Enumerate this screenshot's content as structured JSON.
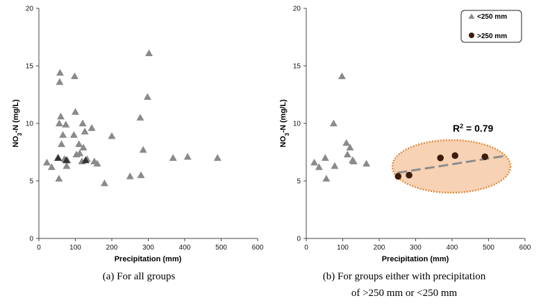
{
  "chart_data": [
    {
      "type": "scatter",
      "xlabel": "Precipitation (mm)",
      "ylabel_main": "NO",
      "ylabel_sub": "3",
      "ylabel_rest": "-N (mg/L)",
      "xlim": [
        0,
        600
      ],
      "ylim": [
        0,
        20
      ],
      "xticks": [
        0,
        100,
        200,
        300,
        400,
        500,
        600
      ],
      "yticks": [
        0,
        5,
        10,
        15,
        20
      ],
      "caption": "(a) For all groups",
      "series": [
        {
          "marker": "triangle",
          "color": "#8a8a8a",
          "points": [
            [
              22,
              6.6
            ],
            [
              35,
              6.2
            ],
            [
              52,
              7.0
            ],
            [
              55,
              5.2
            ],
            [
              56,
              10.0
            ],
            [
              57,
              13.6
            ],
            [
              58,
              14.4
            ],
            [
              60,
              10.6
            ],
            [
              62,
              8.2
            ],
            [
              66,
              9.0
            ],
            [
              70,
              6.9
            ],
            [
              74,
              9.9
            ],
            [
              76,
              6.3
            ],
            [
              78,
              6.8
            ],
            [
              96,
              9.0
            ],
            [
              98,
              14.1
            ],
            [
              100,
              11.0
            ],
            [
              103,
              7.3
            ],
            [
              110,
              8.2
            ],
            [
              112,
              7.4
            ],
            [
              118,
              6.7
            ],
            [
              120,
              10.0
            ],
            [
              122,
              7.9
            ],
            [
              126,
              9.3
            ],
            [
              132,
              6.9
            ],
            [
              145,
              9.6
            ],
            [
              152,
              6.7
            ],
            [
              160,
              6.5
            ],
            [
              180,
              4.8
            ],
            [
              200,
              8.9
            ],
            [
              250,
              5.4
            ],
            [
              278,
              10.5
            ],
            [
              280,
              5.5
            ],
            [
              286,
              7.7
            ],
            [
              298,
              12.3
            ],
            [
              302,
              16.1
            ],
            [
              368,
              7.0
            ],
            [
              408,
              7.1
            ],
            [
              490,
              7.0
            ]
          ]
        },
        {
          "marker": "triangle",
          "color": "#333333",
          "points": [
            [
              53,
              7.0
            ],
            [
              75,
              6.8
            ],
            [
              128,
              6.8
            ]
          ]
        }
      ]
    },
    {
      "type": "scatter",
      "xlabel": "Precipitation (mm)",
      "ylabel_main": "NO",
      "ylabel_sub": "3",
      "ylabel_rest": "-N (mg/L)",
      "xlim": [
        0,
        600
      ],
      "ylim": [
        0,
        20
      ],
      "xticks": [
        0,
        100,
        200,
        300,
        400,
        500,
        600
      ],
      "yticks": [
        0,
        5,
        10,
        15,
        20
      ],
      "caption_line1": "(b) For groups either with precipitation",
      "caption_line2": "of >250 mm or <250 mm",
      "annotation": "R",
      "annotation_sup": "2",
      "annotation_rest": " = 0.79",
      "ellipse_fill": "#f8d2b4",
      "ellipse_stroke": "#e08a3c",
      "trendline_color": "#8c8c8c",
      "trendline": [
        [
          250,
          5.7
        ],
        [
          550,
          7.2
        ]
      ],
      "legend_position": "top-right",
      "series": [
        {
          "name": "<250 mm",
          "marker": "triangle",
          "color": "#8a8a8a",
          "points": [
            [
              22,
              6.6
            ],
            [
              35,
              6.2
            ],
            [
              52,
              7.0
            ],
            [
              55,
              5.2
            ],
            [
              75,
              10.0
            ],
            [
              78,
              6.3
            ],
            [
              98,
              14.1
            ],
            [
              110,
              8.3
            ],
            [
              113,
              7.3
            ],
            [
              120,
              7.9
            ],
            [
              127,
              6.8
            ],
            [
              130,
              6.7
            ],
            [
              165,
              6.5
            ]
          ]
        },
        {
          "name": ">250 mm",
          "marker": "circle",
          "color": "#3d1c0c",
          "points": [
            [
              252,
              5.4
            ],
            [
              282,
              5.5
            ],
            [
              368,
              7.0
            ],
            [
              408,
              7.2
            ],
            [
              490,
              7.1
            ]
          ]
        }
      ]
    }
  ]
}
